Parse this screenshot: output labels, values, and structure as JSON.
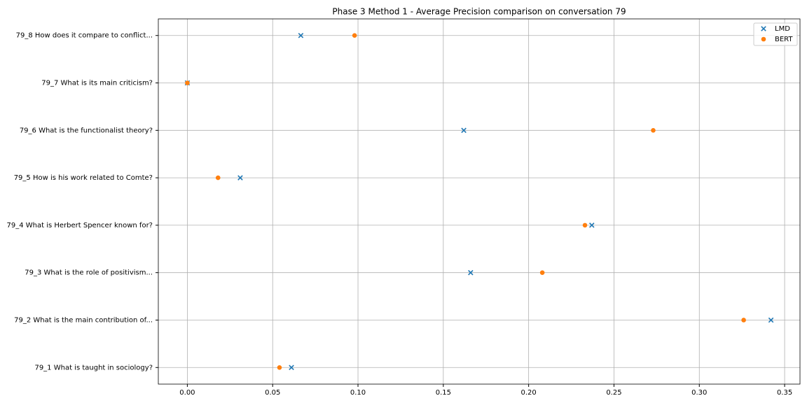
{
  "chart_data": {
    "type": "scatter",
    "title": "Phase 3 Method 1 - Average Precision comparison on conversation 79",
    "categories": [
      "79_1 What is taught in sociology?",
      "79_2 What is the main contribution of...",
      "79_3 What is the role of positivism...",
      "79_4 What is Herbert Spencer known for?",
      "79_5 How is his work related to Comte?",
      "79_6 What is the functionalist theory?",
      "79_7 What is its main criticism?",
      "79_8 How does it compare to conflict..."
    ],
    "series": [
      {
        "name": "LMD",
        "color": "#1f77b4",
        "marker": "x",
        "values": [
          0.061,
          0.342,
          0.166,
          0.237,
          0.031,
          0.162,
          0,
          0.0665
        ]
      },
      {
        "name": "BERT",
        "color": "#ff7f0e",
        "marker": "o",
        "values": [
          0.054,
          0.326,
          0.208,
          0.233,
          0.018,
          0.273,
          0,
          0.098
        ]
      }
    ],
    "xlim": [
      -0.017,
      0.359
    ],
    "xticks": [
      {
        "value": 0,
        "label": "0.00"
      },
      0.05,
      {
        "value": 0.1,
        "label": "0.10"
      },
      0.15,
      {
        "value": 0.2,
        "label": "0.20"
      },
      0.25,
      {
        "value": 0.3,
        "label": "0.30"
      },
      0.35
    ],
    "grid": true,
    "legend": "upper right"
  }
}
